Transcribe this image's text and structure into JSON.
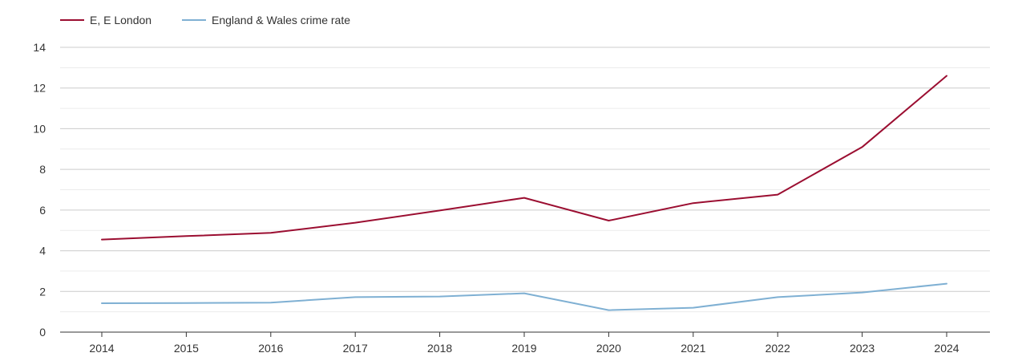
{
  "chart_data": {
    "type": "line",
    "title": "",
    "xlabel": "",
    "ylabel": "",
    "x": [
      "2014",
      "2015",
      "2016",
      "2017",
      "2018",
      "2019",
      "2020",
      "2021",
      "2022",
      "2023",
      "2024"
    ],
    "ylim": [
      0,
      14
    ],
    "yticks": [
      0,
      2,
      4,
      6,
      8,
      10,
      12,
      14
    ],
    "grid": true,
    "legend_position": "top-left",
    "series": [
      {
        "name": "E, E London",
        "color": "#9b0e31",
        "values": [
          4.55,
          4.72,
          4.88,
          5.38,
          5.98,
          6.6,
          5.48,
          6.34,
          6.76,
          9.1,
          12.6
        ]
      },
      {
        "name": "England & Wales crime rate",
        "color": "#7fb0d3",
        "values": [
          1.42,
          1.43,
          1.45,
          1.72,
          1.75,
          1.91,
          1.08,
          1.2,
          1.72,
          1.95,
          2.38
        ]
      }
    ]
  }
}
